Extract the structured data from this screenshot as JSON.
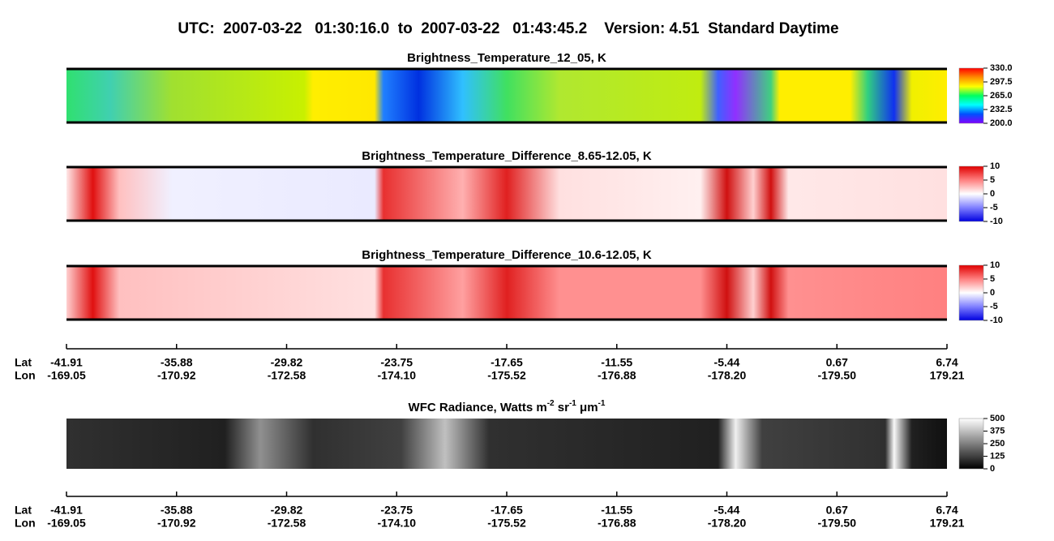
{
  "title": "UTC:  2007-03-22   01:30:16.0  to  2007-03-22   01:43:45.2    Version: 4.51  Standard Daytime",
  "panels": [
    {
      "title": [
        {
          "text": "Brightness_Temperature_12_05, K"
        }
      ],
      "colorbar": {
        "ticks": [
          "330.0",
          "297.5",
          "265.0",
          "232.5",
          "200.0"
        ],
        "colors": [
          "#ff0000",
          "#ff8c00",
          "#ffff00",
          "#00ff60",
          "#00ffff",
          "#0050ff",
          "#8000ff"
        ]
      }
    },
    {
      "title": [
        {
          "text": "Brightness_Temperature_Difference_8.65-12.05, K"
        }
      ],
      "colorbar": {
        "ticks": [
          "10",
          "5",
          "0",
          "-5",
          "-10"
        ],
        "colors": [
          "#e00000",
          "#ff8080",
          "#ffffff",
          "#8080ff",
          "#0000e0"
        ]
      }
    },
    {
      "title": [
        {
          "text": "Brightness_Temperature_Difference_10.6-12.05, K"
        }
      ],
      "colorbar": {
        "ticks": [
          "10",
          "5",
          "0",
          "-5",
          "-10"
        ],
        "colors": [
          "#e00000",
          "#ff8080",
          "#ffffff",
          "#8080ff",
          "#0000e0"
        ]
      }
    },
    {
      "title": [
        {
          "text": "WFC Radiance, Watts m"
        },
        {
          "text": "-2",
          "sup": true
        },
        {
          "text": " sr"
        },
        {
          "text": "-1",
          "sup": true
        },
        {
          "text": " μm"
        },
        {
          "text": "-1",
          "sup": true
        }
      ],
      "colorbar": {
        "ticks": [
          "500",
          "375",
          "250",
          "125",
          "0"
        ],
        "colors": [
          "#ffffff",
          "#000000"
        ]
      }
    }
  ],
  "axes": [
    {
      "lat_label": "Lat",
      "lon_label": "Lon",
      "ticks": [
        {
          "lat": "-41.91",
          "lon": "-169.05"
        },
        {
          "lat": "-35.88",
          "lon": "-170.92"
        },
        {
          "lat": "-29.82",
          "lon": "-172.58"
        },
        {
          "lat": "-23.75",
          "lon": "-174.10"
        },
        {
          "lat": "-17.65",
          "lon": "-175.52"
        },
        {
          "lat": "-11.55",
          "lon": "-176.88"
        },
        {
          "lat": "-5.44",
          "lon": "-178.20"
        },
        {
          "lat": "0.67",
          "lon": "-179.50"
        },
        {
          "lat": "6.74",
          "lon": "179.21"
        }
      ]
    },
    {
      "lat_label": "Lat",
      "lon_label": "Lon",
      "ticks": [
        {
          "lat": "-41.91",
          "lon": "-169.05"
        },
        {
          "lat": "-35.88",
          "lon": "-170.92"
        },
        {
          "lat": "-29.82",
          "lon": "-172.58"
        },
        {
          "lat": "-23.75",
          "lon": "-174.10"
        },
        {
          "lat": "-17.65",
          "lon": "-175.52"
        },
        {
          "lat": "-11.55",
          "lon": "-176.88"
        },
        {
          "lat": "-5.44",
          "lon": "-178.20"
        },
        {
          "lat": "0.67",
          "lon": "-179.50"
        },
        {
          "lat": "6.74",
          "lon": "179.21"
        }
      ]
    }
  ]
}
